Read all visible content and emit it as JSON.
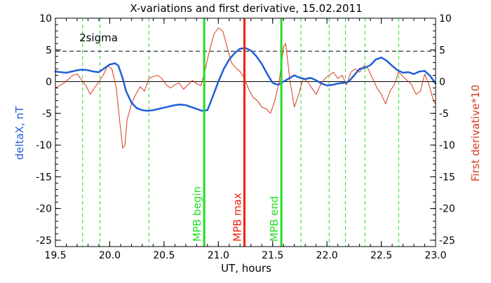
{
  "chart_data": {
    "type": "line",
    "title": "X-variations and first derivative, 15.02.2011",
    "xlabel": "UT, hours",
    "ylabel_left": "deltaX, nT",
    "ylabel_right": "First derivative*10",
    "xlim": [
      19.5,
      23.0
    ],
    "ylim": [
      -26,
      10
    ],
    "ylim_right": [
      -26,
      10
    ],
    "xticks": [
      "19.5",
      "20.0",
      "20.5",
      "21.0",
      "21.5",
      "22.0",
      "22.5",
      "23.0"
    ],
    "xtick_values": [
      19.5,
      20.0,
      20.5,
      21.0,
      21.5,
      22.0,
      22.5,
      23.0
    ],
    "yticks": [
      "10",
      "5",
      "0",
      "-5",
      "-10",
      "-15",
      "-20",
      "-25"
    ],
    "ytick_values": [
      10,
      5,
      0,
      -5,
      -10,
      -15,
      -20,
      -25
    ],
    "colors": {
      "deltaX": "#1f5fd6",
      "derivative": "#d43a1a",
      "mpb_markers": "#22dd22",
      "mpb_max": "#ee2211",
      "axes": "#000000"
    },
    "sigma_level": {
      "label": "2sigma",
      "value": 4.8
    },
    "zero_line": 0,
    "markers": [
      {
        "label": "MPB begin",
        "x": 20.87,
        "color": "#22dd22"
      },
      {
        "label": "MPB max",
        "x": 21.24,
        "color": "#ee2211"
      },
      {
        "label": "MPB end",
        "x": 21.58,
        "color": "#22dd22"
      }
    ],
    "dashed_verticals": [
      19.75,
      19.91,
      20.36,
      21.76,
      22.02,
      22.17,
      22.35,
      22.66
    ],
    "series": [
      {
        "key": "deltaX",
        "axis": "left",
        "color": "#1f5fd6",
        "x": [
          19.5,
          19.55,
          19.6,
          19.65,
          19.7,
          19.75,
          19.8,
          19.85,
          19.9,
          19.95,
          20.0,
          20.05,
          20.08,
          20.12,
          20.15,
          20.2,
          20.25,
          20.3,
          20.35,
          20.4,
          20.45,
          20.5,
          20.55,
          20.6,
          20.65,
          20.7,
          20.75,
          20.8,
          20.85,
          20.9,
          20.95,
          21.0,
          21.05,
          21.1,
          21.15,
          21.2,
          21.25,
          21.3,
          21.35,
          21.4,
          21.45,
          21.5,
          21.55,
          21.6,
          21.65,
          21.7,
          21.75,
          21.8,
          21.85,
          21.9,
          21.95,
          22.0,
          22.05,
          22.1,
          22.15,
          22.2,
          22.25,
          22.3,
          22.35,
          22.4,
          22.45,
          22.5,
          22.55,
          22.6,
          22.65,
          22.7,
          22.75,
          22.8,
          22.85,
          22.9,
          22.95,
          23.0
        ],
        "values": [
          1.6,
          1.5,
          1.4,
          1.6,
          1.8,
          1.9,
          1.8,
          1.6,
          1.5,
          2.1,
          2.7,
          2.9,
          2.5,
          0.5,
          -1.5,
          -3.3,
          -4.2,
          -4.5,
          -4.6,
          -4.5,
          -4.3,
          -4.1,
          -3.9,
          -3.7,
          -3.6,
          -3.7,
          -4.0,
          -4.3,
          -4.6,
          -4.5,
          -2.3,
          0.0,
          2.0,
          3.5,
          4.5,
          5.2,
          5.3,
          4.9,
          4.0,
          2.8,
          1.2,
          -0.2,
          -0.5,
          0.0,
          0.5,
          1.0,
          0.6,
          0.4,
          0.6,
          0.2,
          -0.3,
          -0.6,
          -0.5,
          -0.3,
          -0.2,
          0.0,
          1.0,
          2.0,
          2.2,
          2.6,
          3.5,
          3.8,
          3.3,
          2.5,
          1.8,
          1.4,
          1.5,
          1.2,
          1.6,
          1.7,
          0.9,
          -0.3
        ]
      },
      {
        "key": "derivative",
        "axis": "right",
        "color": "#d43a1a",
        "x": [
          19.5,
          19.54,
          19.58,
          19.62,
          19.66,
          19.7,
          19.74,
          19.78,
          19.82,
          19.86,
          19.9,
          19.94,
          19.98,
          20.02,
          20.06,
          20.1,
          20.12,
          20.14,
          20.16,
          20.2,
          20.24,
          20.28,
          20.32,
          20.36,
          20.4,
          20.44,
          20.48,
          20.52,
          20.56,
          20.6,
          20.64,
          20.68,
          20.72,
          20.76,
          20.8,
          20.84,
          20.88,
          20.92,
          20.96,
          21.0,
          21.04,
          21.08,
          21.12,
          21.16,
          21.2,
          21.24,
          21.28,
          21.32,
          21.36,
          21.4,
          21.44,
          21.48,
          21.52,
          21.56,
          21.6,
          21.62,
          21.66,
          21.7,
          21.74,
          21.78,
          21.82,
          21.86,
          21.9,
          21.94,
          21.98,
          22.02,
          22.06,
          22.1,
          22.14,
          22.18,
          22.22,
          22.26,
          22.3,
          22.34,
          22.38,
          22.42,
          22.46,
          22.5,
          22.54,
          22.58,
          22.62,
          22.66,
          22.7,
          22.74,
          22.78,
          22.82,
          22.86,
          22.9,
          22.94,
          22.98,
          23.0
        ],
        "values": [
          -1.0,
          -0.6,
          -0.2,
          0.4,
          1.0,
          1.2,
          0.3,
          -0.6,
          -2.0,
          -1.0,
          0.0,
          1.0,
          2.5,
          2.0,
          -1.0,
          -7.5,
          -10.5,
          -10.0,
          -6.0,
          -3.5,
          -2.0,
          -0.8,
          -1.5,
          0.5,
          0.8,
          1.0,
          0.5,
          -0.5,
          -1.0,
          -0.5,
          -0.2,
          -1.2,
          -0.5,
          0.2,
          -0.3,
          -0.6,
          2.0,
          5.0,
          7.5,
          8.5,
          8.0,
          5.5,
          3.0,
          2.2,
          1.6,
          0.5,
          -1.2,
          -2.5,
          -3.0,
          -4.0,
          -4.3,
          -5.0,
          -3.0,
          0.0,
          5.5,
          6.0,
          0.0,
          -4.0,
          -2.0,
          0.5,
          0.0,
          -1.0,
          -2.0,
          -0.5,
          0.5,
          1.0,
          1.5,
          0.5,
          1.0,
          -0.5,
          1.5,
          2.0,
          1.5,
          2.5,
          2.0,
          0.5,
          -1.0,
          -2.0,
          -3.5,
          -1.5,
          -0.5,
          1.5,
          0.8,
          0.2,
          -0.5,
          -2.0,
          -1.5,
          1.2,
          -0.5,
          -3.0,
          -3.5
        ]
      }
    ]
  }
}
